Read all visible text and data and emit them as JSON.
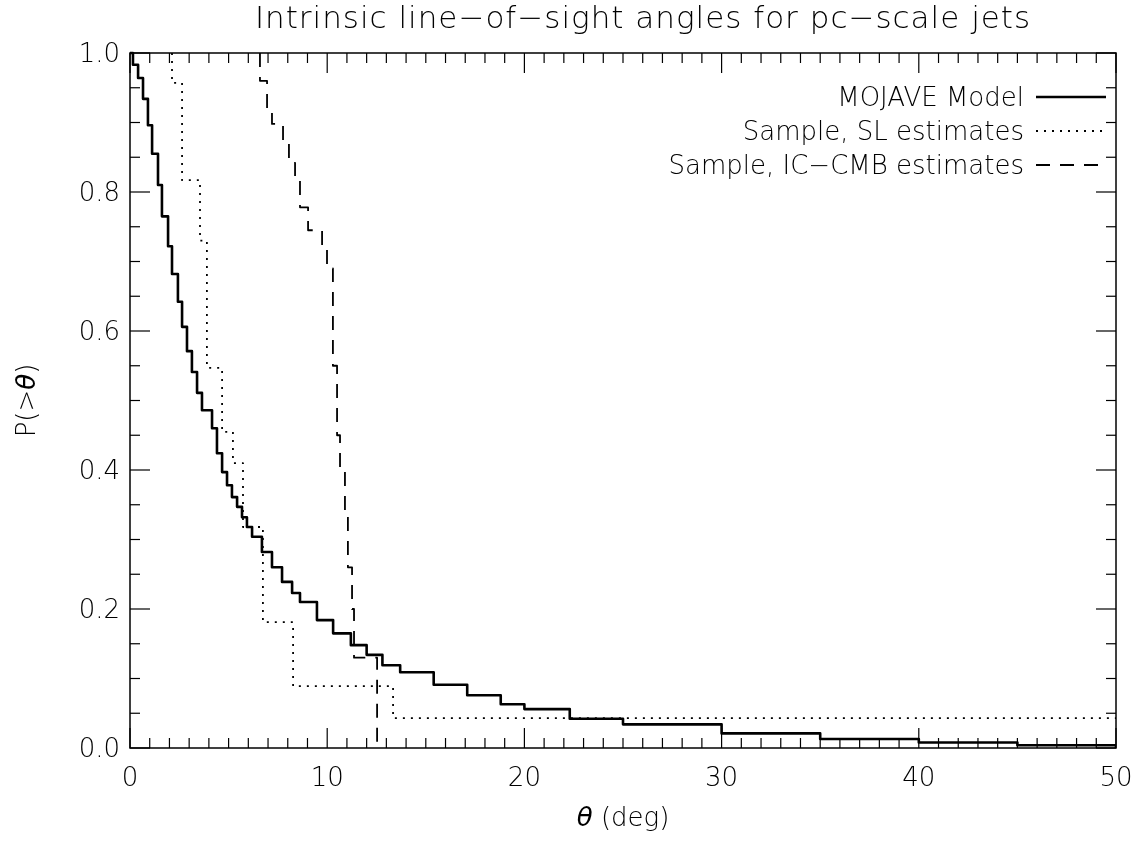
{
  "chart_data": {
    "type": "step",
    "title": "Intrinsic line−of−sight angles for pc−scale jets",
    "xlabel": "θ (deg)",
    "ylabel": "P(>θ)",
    "xlim": [
      0,
      50
    ],
    "ylim": [
      0,
      1
    ],
    "xticks": [
      0,
      {
        "value": 1,
        "label": null
      },
      {
        "value": 2,
        "label": null
      },
      {
        "value": 3,
        "label": null
      },
      {
        "value": 4,
        "label": null
      },
      {
        "value": 5,
        "label": null
      },
      {
        "value": 6,
        "label": null
      },
      {
        "value": 7,
        "label": null
      },
      {
        "value": 8,
        "label": null
      },
      {
        "value": 9,
        "label": null
      },
      10,
      {
        "value": 11,
        "label": null
      },
      {
        "value": 12,
        "label": null
      },
      {
        "value": 13,
        "label": null
      },
      {
        "value": 14,
        "label": null
      },
      {
        "value": 15,
        "label": null
      },
      {
        "value": 16,
        "label": null
      },
      {
        "value": 17,
        "label": null
      },
      {
        "value": 18,
        "label": null
      },
      {
        "value": 19,
        "label": null
      },
      20,
      {
        "value": 21,
        "label": null
      },
      {
        "value": 22,
        "label": null
      },
      {
        "value": 23,
        "label": null
      },
      {
        "value": 24,
        "label": null
      },
      {
        "value": 25,
        "label": null
      },
      {
        "value": 26,
        "label": null
      },
      {
        "value": 27,
        "label": null
      },
      {
        "value": 28,
        "label": null
      },
      {
        "value": 29,
        "label": null
      },
      30,
      {
        "value": 31,
        "label": null
      },
      {
        "value": 32,
        "label": null
      },
      {
        "value": 33,
        "label": null
      },
      {
        "value": 34,
        "label": null
      },
      {
        "value": 35,
        "label": null
      },
      {
        "value": 36,
        "label": null
      },
      {
        "value": 37,
        "label": null
      },
      {
        "value": 38,
        "label": null
      },
      {
        "value": 39,
        "label": null
      },
      40,
      {
        "value": 41,
        "label": null
      },
      {
        "value": 42,
        "label": null
      },
      {
        "value": 43,
        "label": null
      },
      {
        "value": 44,
        "label": null
      },
      {
        "value": 45,
        "label": null
      },
      {
        "value": 46,
        "label": null
      },
      {
        "value": 47,
        "label": null
      },
      {
        "value": 48,
        "label": null
      },
      {
        "value": 49,
        "label": null
      },
      50
    ],
    "yticks": [
      {
        "value": 0,
        "label": "0.0"
      },
      {
        "value": 0.05,
        "label": null
      },
      {
        "value": 0.1,
        "label": null
      },
      {
        "value": 0.15,
        "label": null
      },
      {
        "value": 0.2,
        "label": "0.2"
      },
      {
        "value": 0.25,
        "label": null
      },
      {
        "value": 0.3,
        "label": null
      },
      {
        "value": 0.35,
        "label": null
      },
      {
        "value": 0.4,
        "label": "0.4"
      },
      {
        "value": 0.45,
        "label": null
      },
      {
        "value": 0.5,
        "label": null
      },
      {
        "value": 0.55,
        "label": null
      },
      {
        "value": 0.6,
        "label": "0.6"
      },
      {
        "value": 0.65,
        "label": null
      },
      {
        "value": 0.7,
        "label": null
      },
      {
        "value": 0.75,
        "label": null
      },
      {
        "value": 0.8,
        "label": "0.8"
      },
      {
        "value": 0.85,
        "label": null
      },
      {
        "value": 0.9,
        "label": null
      },
      {
        "value": 0.95,
        "label": null
      },
      {
        "value": 1,
        "label": "1.0"
      }
    ],
    "grid": false,
    "legend": "top right",
    "series": [
      {
        "name": "MOJAVE Model",
        "color": "#000000",
        "line_style": "solid",
        "x": [
          0,
          0.15,
          0.41,
          0.66,
          0.91,
          1.12,
          1.42,
          1.62,
          1.93,
          2.13,
          2.43,
          2.64,
          2.89,
          3.14,
          3.4,
          3.65,
          4.16,
          4.41,
          4.67,
          4.92,
          5.17,
          5.43,
          5.68,
          5.93,
          6.19,
          6.69,
          7.2,
          7.71,
          8.22,
          8.62,
          9.48,
          10.3,
          11.2,
          12,
          12.8,
          13.7,
          15.4,
          17.1,
          18.8,
          20,
          22.3,
          25,
          30,
          35,
          40,
          45,
          50
        ],
        "values": [
          1,
          0.983,
          0.964,
          0.934,
          0.896,
          0.855,
          0.81,
          0.765,
          0.722,
          0.682,
          0.642,
          0.606,
          0.571,
          0.541,
          0.511,
          0.486,
          0.46,
          0.424,
          0.397,
          0.378,
          0.361,
          0.347,
          0.332,
          0.318,
          0.304,
          0.282,
          0.26,
          0.239,
          0.223,
          0.21,
          0.184,
          0.165,
          0.148,
          0.134,
          0.119,
          0.109,
          0.091,
          0.076,
          0.063,
          0.056,
          0.042,
          0.034,
          0.021,
          0.013,
          0.008,
          0.004,
          0
        ]
      },
      {
        "name": "Sample, SL estimates",
        "color": "#000000",
        "line_style": "dotted",
        "x": [
          2.13,
          2.13,
          2.64,
          3.55,
          3.9,
          4.67,
          5.22,
          5.73,
          6.74,
          8.27,
          13.34,
          50
        ],
        "values": [
          1,
          0.957,
          0.817,
          0.73,
          0.547,
          0.455,
          0.41,
          0.318,
          0.181,
          0.089,
          0.043,
          0.043
        ]
      },
      {
        "name": "Sample, IC−CMB estimates",
        "color": "#000000",
        "line_style": "dashed",
        "x": [
          6.59,
          6.59,
          6.95,
          7.2,
          7.76,
          8.06,
          8.37,
          8.62,
          9.03,
          9.74,
          9.99,
          10.29,
          10.5,
          10.65,
          10.9,
          11.05,
          11.26,
          11.36,
          12.53
        ],
        "values": [
          1,
          0.96,
          0.92,
          0.898,
          0.87,
          0.842,
          0.817,
          0.778,
          0.745,
          0.72,
          0.69,
          0.55,
          0.45,
          0.4,
          0.34,
          0.26,
          0.2,
          0.13,
          0
        ]
      }
    ]
  }
}
